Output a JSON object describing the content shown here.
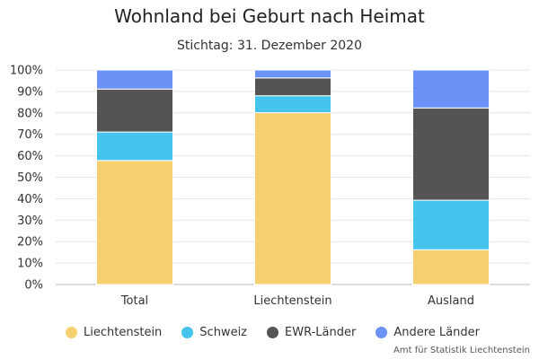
{
  "chart_data": {
    "type": "bar",
    "stacked": true,
    "percent": true,
    "title": "Wohnland bei Geburt nach Heimat",
    "subtitle": "Stichtag: 31. Dezember 2020",
    "categories": [
      "Total",
      "Liechtenstein",
      "Ausland"
    ],
    "series": [
      {
        "name": "Liechtenstein",
        "color": "#f4d06f",
        "values": [
          57.8,
          80.1,
          16.2
        ]
      },
      {
        "name": "Schweiz",
        "color": "#45c4ee",
        "values": [
          13.3,
          7.9,
          23.1
        ]
      },
      {
        "name": "EWR-Länder",
        "color": "#545454",
        "values": [
          20.0,
          8.3,
          43.0
        ]
      },
      {
        "name": "Andere Länder",
        "color": "#6b93f7",
        "values": [
          8.9,
          3.7,
          17.7
        ]
      }
    ],
    "y_ticks": [
      "0%",
      "10%",
      "20%",
      "30%",
      "40%",
      "50%",
      "60%",
      "70%",
      "80%",
      "90%",
      "100%"
    ],
    "ylim": [
      0,
      100
    ],
    "grid": true,
    "legend_position": "bottom"
  },
  "credit": "Amt für Statistik Liechtenstein"
}
